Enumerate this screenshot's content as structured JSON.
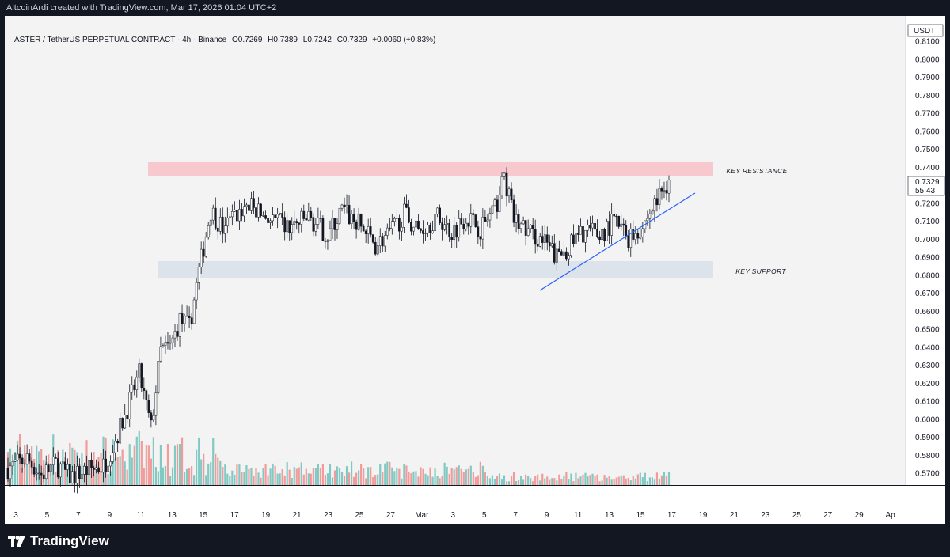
{
  "header": {
    "credit": "AltcoinArdi created with TradingView.com, Mar 17, 2026 01:04 UTC+2"
  },
  "legend": {
    "symbol": "ASTER / TetherUS PERPETUAL CONTRACT · 4h · Binance",
    "open": "O0.7269",
    "high": "H0.7389",
    "low": "L0.7242",
    "close": "C0.7329",
    "change": "+0.0060 (+0.83%)"
  },
  "price_scale": {
    "currency": "USDT",
    "last_price": "0.7329",
    "countdown": "55:43"
  },
  "brand": {
    "name": "TradingView"
  },
  "colors": {
    "up": "#26a69a",
    "down": "#ef5350",
    "resistance_zone": "#f7c9ce",
    "support_zone": "#dde3ea",
    "trendline": "#2962ff",
    "background": "#f3f3f3"
  },
  "chart_data": {
    "type": "candlestick",
    "timeframe": "4h",
    "y_axis": {
      "ylim": [
        0.562,
        0.817
      ],
      "ticks": [
        "0.8100",
        "0.8000",
        "0.7900",
        "0.7800",
        "0.7700",
        "0.7600",
        "0.7500",
        "0.7400",
        "0.7300",
        "0.7200",
        "0.7100",
        "0.7000",
        "0.6900",
        "0.6800",
        "0.6700",
        "0.6600",
        "0.6500",
        "0.6400",
        "0.6300",
        "0.6200",
        "0.6100",
        "0.6000",
        "0.5900",
        "0.5800",
        "0.5700"
      ]
    },
    "x_axis": {
      "ticks": [
        "3",
        "5",
        "7",
        "9",
        "11",
        "13",
        "15",
        "17",
        "19",
        "21",
        "23",
        "25",
        "27",
        "Mar",
        "3",
        "5",
        "7",
        "9",
        "11",
        "13",
        "15",
        "17",
        "19",
        "21",
        "23",
        "25",
        "27",
        "29",
        "Ap"
      ]
    },
    "annotations": [
      {
        "type": "zone",
        "label": "KEY RESISTANCE",
        "from": 0.7359,
        "to": 0.7439
      },
      {
        "type": "zone",
        "label": "KEY SUPPORT",
        "from": 0.6792,
        "to": 0.6882
      },
      {
        "type": "trendline",
        "from": {
          "date": "Mar 8",
          "price": 0.672
        },
        "to": {
          "date": "Mar 18",
          "price": 0.7265
        }
      }
    ],
    "series_description": "ASTERUSDT.P 4h candles from early Feb to Mar 17, 2026: rally from ~0.57 to ~0.73 by Feb 12, then range between ~0.68 and ~0.74, ascending trendline from Mar 8, last close 0.7329"
  }
}
